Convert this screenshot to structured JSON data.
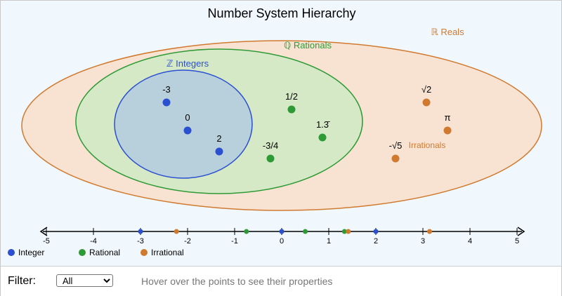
{
  "title": "Number System Hierarchy",
  "sets": {
    "reals": "ℝ Reals",
    "rationals": "ℚ Rationals",
    "integers": "ℤ Integers",
    "irrationals": "Irrationals"
  },
  "colors": {
    "integer": "#2a4fd0",
    "rational": "#2e9a35",
    "irrational": "#d07a30",
    "reals_fill": "#f8e3d3",
    "rationals_fill": "#d5e9c6",
    "integers_fill": "#b8d0dc"
  },
  "points": [
    {
      "label": "-3",
      "type": "integer"
    },
    {
      "label": "0",
      "type": "integer"
    },
    {
      "label": "2",
      "type": "integer"
    },
    {
      "label": "1/2",
      "type": "rational"
    },
    {
      "label": "1.3̄",
      "type": "rational"
    },
    {
      "label": "-3/4",
      "type": "rational"
    },
    {
      "label": "√2",
      "type": "irrational"
    },
    {
      "label": "π",
      "type": "irrational"
    },
    {
      "label": "-√5",
      "type": "irrational"
    }
  ],
  "number_line": {
    "ticks": [
      "-5",
      "-4",
      "-3",
      "-2",
      "-1",
      "0",
      "1",
      "2",
      "3",
      "4",
      "5"
    ],
    "markers": [
      {
        "value": -3,
        "type": "integer"
      },
      {
        "value": 0,
        "type": "integer"
      },
      {
        "value": 2,
        "type": "integer"
      },
      {
        "value": 0.5,
        "type": "rational"
      },
      {
        "value": 1.333,
        "type": "rational"
      },
      {
        "value": -0.75,
        "type": "rational"
      },
      {
        "value": 1.414,
        "type": "irrational"
      },
      {
        "value": 3.1416,
        "type": "irrational"
      },
      {
        "value": -2.236,
        "type": "irrational"
      }
    ]
  },
  "legend": [
    {
      "label": "Integer",
      "type": "integer"
    },
    {
      "label": "Rational",
      "type": "rational"
    },
    {
      "label": "Irrational",
      "type": "irrational"
    }
  ],
  "controls": {
    "filter_label": "Filter:",
    "filter_value": "All",
    "hint": "Hover over the points to see their properties"
  }
}
